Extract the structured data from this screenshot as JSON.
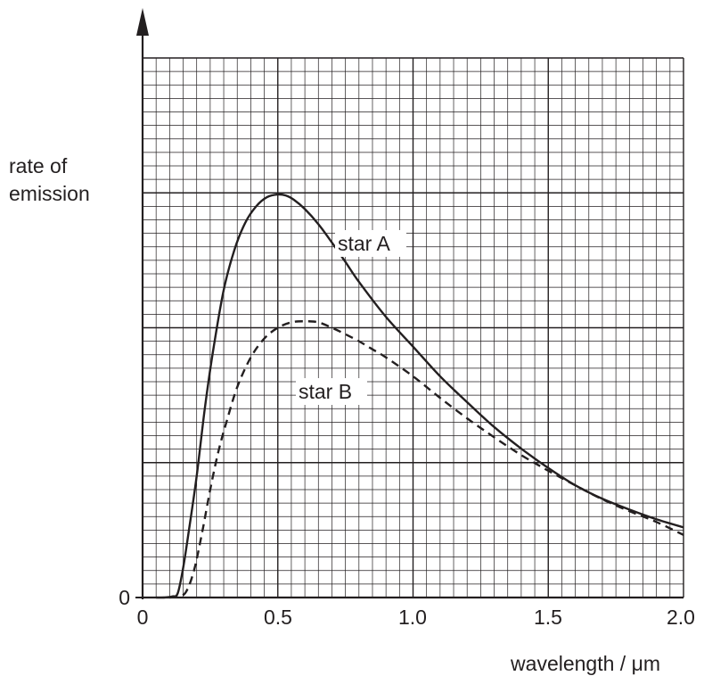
{
  "chart_data": {
    "type": "line",
    "title": "",
    "xlabel": "wavelength / μm",
    "ylabel_lines": [
      "rate of",
      "emission"
    ],
    "xlim": [
      0,
      2.0
    ],
    "ylim": [
      0,
      1.0
    ],
    "x_ticks": [
      "0",
      "0.5",
      "1.0",
      "1.5",
      "2.0"
    ],
    "y_ticks": [
      "0"
    ],
    "grid": true,
    "series": [
      {
        "name": "star A",
        "style": "solid",
        "x": [
          0.05,
          0.08,
          0.11,
          0.13,
          0.15,
          0.17,
          0.2,
          0.23,
          0.26,
          0.3,
          0.34,
          0.38,
          0.42,
          0.46,
          0.5,
          0.53,
          0.56,
          0.6,
          0.65,
          0.7,
          0.75,
          0.8,
          0.9,
          1.0,
          1.1,
          1.2,
          1.3,
          1.4,
          1.5,
          1.6,
          1.7,
          1.8,
          1.9,
          2.0
        ],
        "y": [
          0.0,
          0.0,
          0.002,
          0.008,
          0.055,
          0.12,
          0.225,
          0.35,
          0.455,
          0.57,
          0.645,
          0.695,
          0.725,
          0.742,
          0.747,
          0.745,
          0.737,
          0.72,
          0.692,
          0.658,
          0.622,
          0.585,
          0.52,
          0.465,
          0.41,
          0.362,
          0.316,
          0.276,
          0.24,
          0.208,
          0.183,
          0.163,
          0.145,
          0.13
        ]
      },
      {
        "name": "star B",
        "style": "dashed",
        "x": [
          0.1,
          0.13,
          0.16,
          0.19,
          0.22,
          0.25,
          0.28,
          0.31,
          0.35,
          0.4,
          0.45,
          0.5,
          0.55,
          0.6,
          0.65,
          0.7,
          0.75,
          0.8,
          0.85,
          0.9,
          1.0,
          1.1,
          1.2,
          1.3,
          1.4,
          1.5,
          1.6,
          1.7,
          1.8,
          1.9,
          2.0
        ],
        "y": [
          0.0,
          0.002,
          0.01,
          0.05,
          0.12,
          0.2,
          0.27,
          0.325,
          0.39,
          0.445,
          0.48,
          0.5,
          0.51,
          0.512,
          0.51,
          0.5,
          0.488,
          0.475,
          0.46,
          0.445,
          0.41,
          0.37,
          0.332,
          0.297,
          0.264,
          0.235,
          0.208,
          0.182,
          0.16,
          0.14,
          0.116
        ]
      }
    ],
    "annotations": [
      {
        "text": "star A",
        "series": "star A"
      },
      {
        "text": "star B",
        "series": "star B"
      }
    ]
  }
}
